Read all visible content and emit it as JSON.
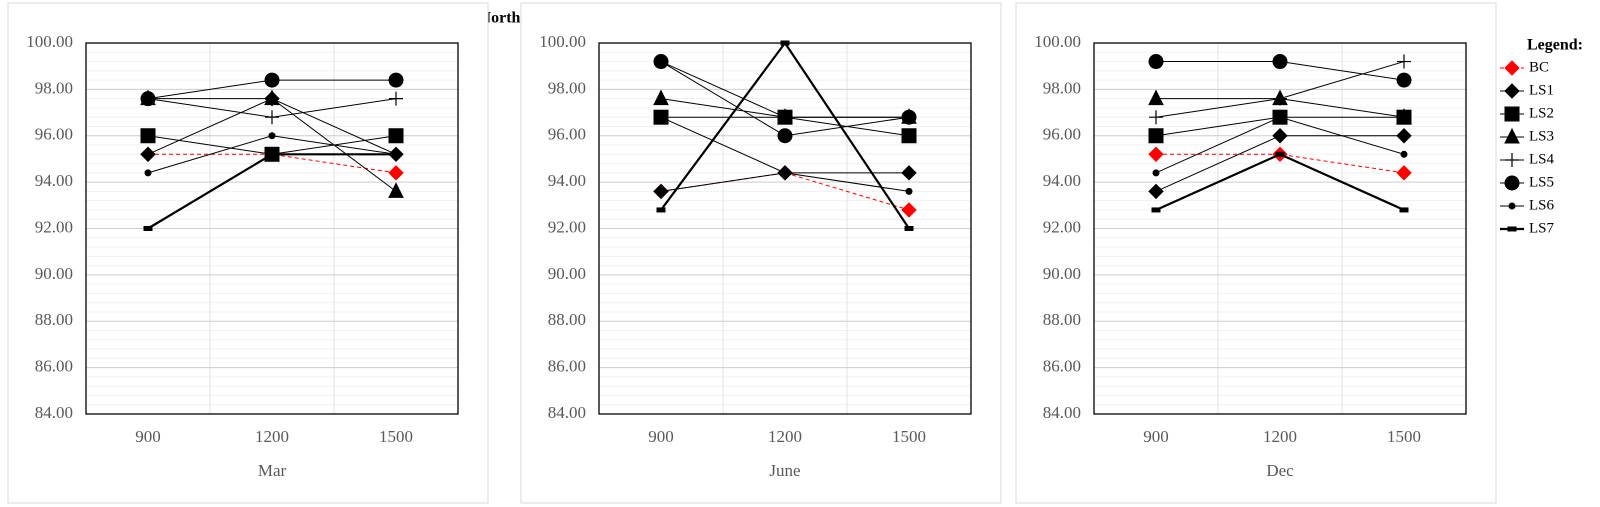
{
  "title": "North",
  "legend_title": "Legend:",
  "chart_data": [
    {
      "type": "line",
      "x_label": "Mar",
      "categories": [
        "900",
        "1200",
        "1500"
      ],
      "ylim": [
        84,
        100
      ],
      "yticks": [
        {
          "value": 84,
          "label": "84.00"
        },
        {
          "value": 86,
          "label": "86.00"
        },
        {
          "value": 88,
          "label": "88.00"
        },
        {
          "value": 90,
          "label": "90.00"
        },
        {
          "value": 92,
          "label": "92.00"
        },
        {
          "value": 94,
          "label": "94.00"
        },
        {
          "value": 96,
          "label": "96.00"
        },
        {
          "value": 98,
          "label": "98.00"
        },
        {
          "value": 100,
          "label": "100.00"
        }
      ],
      "grid": true,
      "series": [
        {
          "name": "BC",
          "color": "#ff0000",
          "marker": "diamond",
          "dashed": true,
          "values": [
            95.2,
            95.2,
            94.4
          ]
        },
        {
          "name": "LS1",
          "color": "#000000",
          "marker": "diamond",
          "values": [
            95.2,
            97.6,
            95.2
          ]
        },
        {
          "name": "LS2",
          "color": "#000000",
          "marker": "square",
          "values": [
            96.0,
            95.2,
            96.0
          ]
        },
        {
          "name": "LS3",
          "color": "#000000",
          "marker": "triangle",
          "values": [
            97.6,
            97.6,
            93.6
          ]
        },
        {
          "name": "LS4",
          "color": "#000000",
          "marker": "plus",
          "values": [
            97.6,
            96.8,
            97.6
          ]
        },
        {
          "name": "LS5",
          "color": "#000000",
          "marker": "circle",
          "values": [
            97.6,
            98.4,
            98.4
          ]
        },
        {
          "name": "LS6",
          "color": "#000000",
          "marker": "dot",
          "values": [
            94.4,
            96.0,
            95.2
          ]
        },
        {
          "name": "LS7",
          "color": "#000000",
          "marker": "dash",
          "thick": true,
          "values": [
            92.0,
            95.2,
            95.2
          ]
        }
      ]
    },
    {
      "type": "line",
      "x_label": "June",
      "categories": [
        "900",
        "1200",
        "1500"
      ],
      "ylim": [
        84,
        100
      ],
      "yticks": [
        {
          "value": 84,
          "label": "84.00"
        },
        {
          "value": 86,
          "label": "86.00"
        },
        {
          "value": 88,
          "label": "88.00"
        },
        {
          "value": 90,
          "label": "90.00"
        },
        {
          "value": 92,
          "label": "92.00"
        },
        {
          "value": 94,
          "label": "94.00"
        },
        {
          "value": 96,
          "label": "96.00"
        },
        {
          "value": 98,
          "label": "98.00"
        },
        {
          "value": 100,
          "label": "100.00"
        }
      ],
      "grid": true,
      "series": [
        {
          "name": "BC",
          "color": "#ff0000",
          "marker": "diamond",
          "dashed": true,
          "values": [
            93.6,
            94.4,
            92.8
          ]
        },
        {
          "name": "LS1",
          "color": "#000000",
          "marker": "diamond",
          "values": [
            93.6,
            94.4,
            94.4
          ]
        },
        {
          "name": "LS2",
          "color": "#000000",
          "marker": "square",
          "values": [
            96.8,
            96.8,
            96.0
          ]
        },
        {
          "name": "LS3",
          "color": "#000000",
          "marker": "triangle",
          "values": [
            97.6,
            96.8,
            96.8
          ]
        },
        {
          "name": "LS4",
          "color": "#000000",
          "marker": "plus",
          "values": [
            99.2,
            96.8,
            96.8
          ]
        },
        {
          "name": "LS5",
          "color": "#000000",
          "marker": "circle",
          "values": [
            99.2,
            96.0,
            96.8
          ]
        },
        {
          "name": "LS6",
          "color": "#000000",
          "marker": "dot",
          "values": [
            96.8,
            94.4,
            93.6
          ]
        },
        {
          "name": "LS7",
          "color": "#000000",
          "marker": "dash",
          "thick": true,
          "values": [
            92.8,
            100.0,
            92.0
          ]
        }
      ]
    },
    {
      "type": "line",
      "x_label": "Dec",
      "categories": [
        "900",
        "1200",
        "1500"
      ],
      "ylim": [
        84,
        100
      ],
      "yticks": [
        {
          "value": 84,
          "label": "84.00"
        },
        {
          "value": 86,
          "label": "86.00"
        },
        {
          "value": 88,
          "label": "88.00"
        },
        {
          "value": 90,
          "label": "90.00"
        },
        {
          "value": 92,
          "label": "92.00"
        },
        {
          "value": 94,
          "label": "94.00"
        },
        {
          "value": 96,
          "label": "96.00"
        },
        {
          "value": 98,
          "label": "98.00"
        },
        {
          "value": 100,
          "label": "100.00"
        }
      ],
      "grid": true,
      "series": [
        {
          "name": "BC",
          "color": "#ff0000",
          "marker": "diamond",
          "dashed": true,
          "values": [
            95.2,
            95.2,
            94.4
          ]
        },
        {
          "name": "LS1",
          "color": "#000000",
          "marker": "diamond",
          "values": [
            93.6,
            96.0,
            96.0
          ]
        },
        {
          "name": "LS2",
          "color": "#000000",
          "marker": "square",
          "values": [
            96.0,
            96.8,
            96.8
          ]
        },
        {
          "name": "LS3",
          "color": "#000000",
          "marker": "triangle",
          "values": [
            97.6,
            97.6,
            96.8
          ]
        },
        {
          "name": "LS4",
          "color": "#000000",
          "marker": "plus",
          "values": [
            96.8,
            97.6,
            99.2
          ]
        },
        {
          "name": "LS5",
          "color": "#000000",
          "marker": "circle",
          "values": [
            99.2,
            99.2,
            98.4
          ]
        },
        {
          "name": "LS6",
          "color": "#000000",
          "marker": "dot",
          "values": [
            94.4,
            96.8,
            95.2
          ]
        },
        {
          "name": "LS7",
          "color": "#000000",
          "marker": "dash",
          "thick": true,
          "values": [
            92.8,
            95.2,
            92.8
          ]
        }
      ]
    }
  ]
}
